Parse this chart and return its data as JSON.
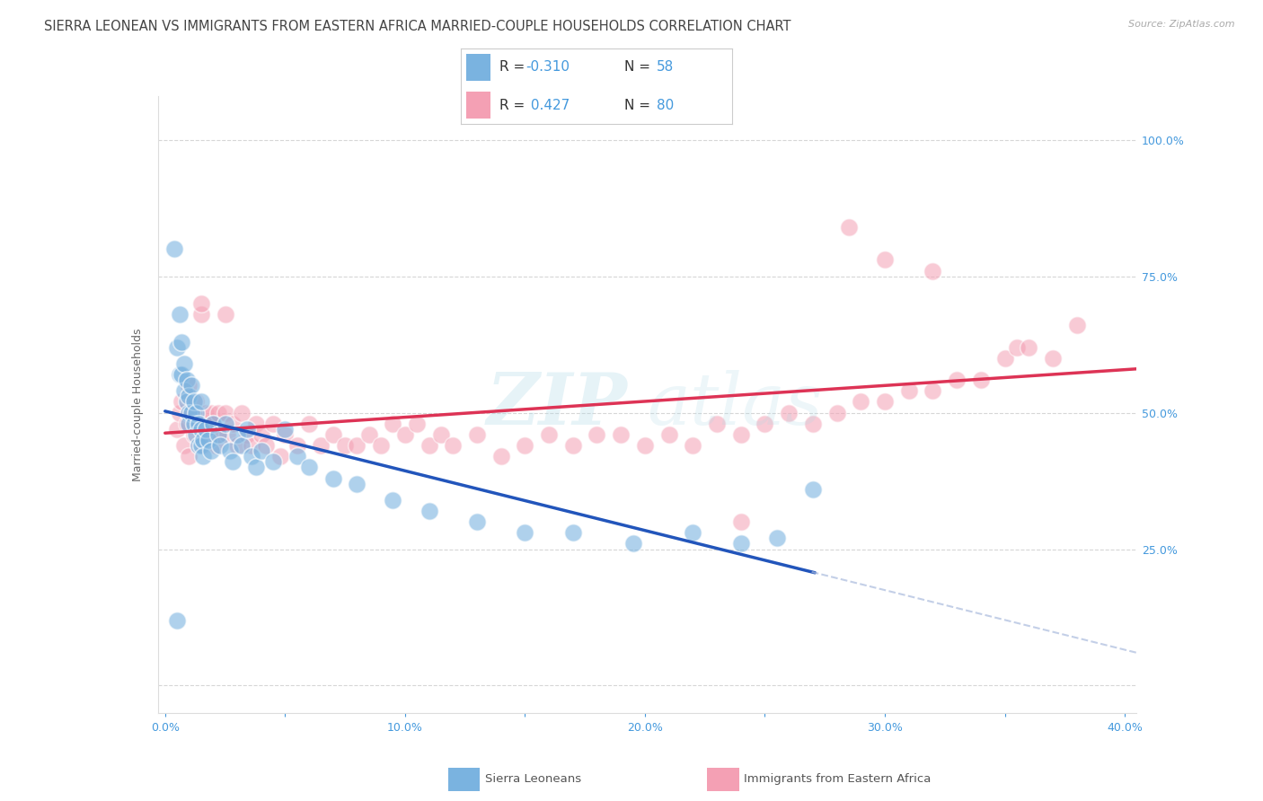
{
  "title": "SIERRA LEONEAN VS IMMIGRANTS FROM EASTERN AFRICA MARRIED-COUPLE HOUSEHOLDS CORRELATION CHART",
  "source": "Source: ZipAtlas.com",
  "ylabel": "Married-couple Households",
  "R_blue": -0.31,
  "N_blue": 58,
  "R_pink": 0.427,
  "N_pink": 80,
  "blue_color": "#7ab3e0",
  "pink_color": "#f4a0b4",
  "trend_blue": "#2255bb",
  "trend_pink": "#dd3355",
  "legend_label_blue": "Sierra Leoneans",
  "legend_label_pink": "Immigrants from Eastern Africa",
  "watermark_text": "ZIP",
  "watermark_text2": "atlas",
  "background_color": "#ffffff",
  "grid_color": "#cccccc",
  "axis_color": "#4499dd",
  "title_color": "#444444",
  "title_fontsize": 10.5,
  "axis_label_fontsize": 9,
  "tick_fontsize": 9,
  "x_ticks": [
    0.0,
    0.05,
    0.1,
    0.15,
    0.2,
    0.25,
    0.3,
    0.35,
    0.4
  ],
  "x_tick_labels": [
    "0.0%",
    "",
    "10.0%",
    "",
    "20.0%",
    "",
    "30.0%",
    "",
    "40.0%"
  ],
  "y_ticks": [
    0.0,
    0.25,
    0.5,
    0.75,
    1.0
  ],
  "y_tick_labels": [
    "",
    "25.0%",
    "50.0%",
    "75.0%",
    "100.0%"
  ],
  "xlim": [
    -0.003,
    0.405
  ],
  "ylim": [
    -0.05,
    1.08
  ],
  "blue_x": [
    0.004,
    0.005,
    0.006,
    0.006,
    0.007,
    0.007,
    0.008,
    0.008,
    0.009,
    0.009,
    0.01,
    0.01,
    0.01,
    0.011,
    0.011,
    0.012,
    0.012,
    0.013,
    0.013,
    0.014,
    0.014,
    0.015,
    0.015,
    0.015,
    0.016,
    0.016,
    0.017,
    0.018,
    0.019,
    0.02,
    0.022,
    0.023,
    0.025,
    0.027,
    0.028,
    0.03,
    0.032,
    0.034,
    0.036,
    0.038,
    0.04,
    0.045,
    0.05,
    0.055,
    0.06,
    0.07,
    0.08,
    0.095,
    0.11,
    0.13,
    0.15,
    0.17,
    0.195,
    0.22,
    0.24,
    0.255,
    0.27,
    0.005
  ],
  "blue_y": [
    0.8,
    0.62,
    0.68,
    0.57,
    0.63,
    0.57,
    0.59,
    0.54,
    0.56,
    0.52,
    0.53,
    0.5,
    0.48,
    0.55,
    0.5,
    0.52,
    0.48,
    0.5,
    0.46,
    0.48,
    0.44,
    0.47,
    0.44,
    0.52,
    0.45,
    0.42,
    0.47,
    0.45,
    0.43,
    0.48,
    0.46,
    0.44,
    0.48,
    0.43,
    0.41,
    0.46,
    0.44,
    0.47,
    0.42,
    0.4,
    0.43,
    0.41,
    0.47,
    0.42,
    0.4,
    0.38,
    0.37,
    0.34,
    0.32,
    0.3,
    0.28,
    0.28,
    0.26,
    0.28,
    0.26,
    0.27,
    0.36,
    0.12
  ],
  "pink_x": [
    0.005,
    0.006,
    0.007,
    0.008,
    0.009,
    0.01,
    0.01,
    0.011,
    0.012,
    0.013,
    0.014,
    0.015,
    0.016,
    0.017,
    0.018,
    0.019,
    0.02,
    0.021,
    0.022,
    0.023,
    0.025,
    0.026,
    0.028,
    0.03,
    0.032,
    0.034,
    0.036,
    0.038,
    0.04,
    0.042,
    0.045,
    0.048,
    0.05,
    0.055,
    0.06,
    0.065,
    0.07,
    0.075,
    0.08,
    0.085,
    0.09,
    0.095,
    0.1,
    0.105,
    0.11,
    0.115,
    0.12,
    0.13,
    0.14,
    0.15,
    0.16,
    0.17,
    0.18,
    0.19,
    0.2,
    0.21,
    0.22,
    0.23,
    0.24,
    0.25,
    0.26,
    0.27,
    0.28,
    0.29,
    0.3,
    0.31,
    0.32,
    0.33,
    0.34,
    0.35,
    0.355,
    0.36,
    0.37,
    0.38,
    0.015,
    0.025,
    0.285,
    0.3,
    0.32,
    0.24
  ],
  "pink_y": [
    0.47,
    0.5,
    0.52,
    0.44,
    0.48,
    0.55,
    0.42,
    0.5,
    0.46,
    0.52,
    0.48,
    0.68,
    0.44,
    0.5,
    0.46,
    0.5,
    0.48,
    0.44,
    0.5,
    0.46,
    0.5,
    0.46,
    0.48,
    0.44,
    0.5,
    0.46,
    0.44,
    0.48,
    0.46,
    0.44,
    0.48,
    0.42,
    0.46,
    0.44,
    0.48,
    0.44,
    0.46,
    0.44,
    0.44,
    0.46,
    0.44,
    0.48,
    0.46,
    0.48,
    0.44,
    0.46,
    0.44,
    0.46,
    0.42,
    0.44,
    0.46,
    0.44,
    0.46,
    0.46,
    0.44,
    0.46,
    0.44,
    0.48,
    0.46,
    0.48,
    0.5,
    0.48,
    0.5,
    0.52,
    0.52,
    0.54,
    0.54,
    0.56,
    0.56,
    0.6,
    0.62,
    0.62,
    0.6,
    0.66,
    0.7,
    0.68,
    0.84,
    0.78,
    0.76,
    0.3
  ]
}
